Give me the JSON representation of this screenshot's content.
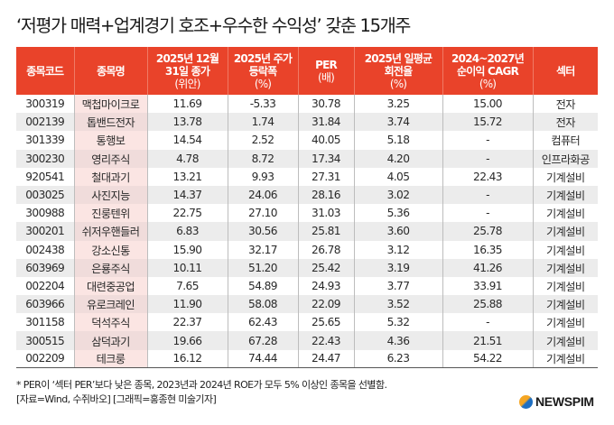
{
  "title": "‘저평가 매력+업계경기 호조+우수한 수익성’ 갖춘 15개주",
  "table": {
    "headers": [
      {
        "label": "종목코드",
        "unit": ""
      },
      {
        "label": "종목명",
        "unit": ""
      },
      {
        "label": "2025년 12월 31일 종가",
        "unit": "(위안)"
      },
      {
        "label": "2025년 주가 등락폭",
        "unit": "(%)"
      },
      {
        "label": "PER",
        "unit": "(배)"
      },
      {
        "label": "2025년 일평균 회전율",
        "unit": "(%)"
      },
      {
        "label": "2024~2027년 순이익 CAGR",
        "unit": "(%)"
      },
      {
        "label": "섹터",
        "unit": ""
      }
    ],
    "rows": [
      [
        "300319",
        "맥첩마이크로",
        "11.69",
        "-5.33",
        "30.78",
        "3.25",
        "15.00",
        "전자"
      ],
      [
        "002139",
        "톱밴드전자",
        "13.78",
        "1.74",
        "31.84",
        "3.74",
        "15.72",
        "전자"
      ],
      [
        "301339",
        "통행보",
        "14.54",
        "2.52",
        "40.05",
        "5.18",
        "-",
        "컴퓨터"
      ],
      [
        "300230",
        "영리주식",
        "4.78",
        "8.72",
        "17.34",
        "4.20",
        "-",
        "인프라화공"
      ],
      [
        "920541",
        "철대과기",
        "13.21",
        "9.93",
        "27.31",
        "4.05",
        "22.43",
        "기계설비"
      ],
      [
        "003025",
        "사진지능",
        "14.37",
        "24.06",
        "28.16",
        "3.02",
        "-",
        "기계설비"
      ],
      [
        "300988",
        "진룽텐위",
        "22.75",
        "27.10",
        "31.03",
        "5.36",
        "-",
        "기계설비"
      ],
      [
        "300201",
        "쉬저우핸들러",
        "6.83",
        "30.56",
        "25.81",
        "3.60",
        "25.78",
        "기계설비"
      ],
      [
        "002438",
        "강소신통",
        "15.90",
        "32.17",
        "26.78",
        "3.12",
        "16.35",
        "기계설비"
      ],
      [
        "603969",
        "은룡주식",
        "10.11",
        "51.20",
        "25.42",
        "3.19",
        "41.26",
        "기계설비"
      ],
      [
        "002204",
        "대련중공업",
        "7.65",
        "54.89",
        "24.93",
        "3.77",
        "33.91",
        "기계설비"
      ],
      [
        "603966",
        "유로크레인",
        "11.90",
        "58.08",
        "22.09",
        "3.52",
        "25.88",
        "기계설비"
      ],
      [
        "301158",
        "덕석주식",
        "22.37",
        "62.43",
        "25.65",
        "5.32",
        "-",
        "기계설비"
      ],
      [
        "300515",
        "삼덕과기",
        "19.66",
        "67.28",
        "22.43",
        "4.36",
        "21.51",
        "기계설비"
      ],
      [
        "002209",
        "테크룽",
        "16.12",
        "74.44",
        "24.47",
        "6.23",
        "54.22",
        "기계설비"
      ]
    ]
  },
  "footnote": {
    "line1": "* PER이 ‘섹터 PER’보다 낮은 종목, 2023년과 2024년 ROE가 모두 5% 이상인 종목을 선별함.",
    "line2": "[자료=Wind, 수쥐바오] [그래픽=홍종현 미술기자]"
  },
  "logo": {
    "text": "NEWSPIM",
    "icon": "globe-icon"
  },
  "colors": {
    "header_bg": "#e9432a",
    "header_text": "#ffffff",
    "name_col_bg": "#fbe5e3",
    "stripe_bg": "#ececec"
  },
  "chart_data": {
    "type": "table",
    "title": "‘저평가 매력+업계경기 호조+우수한 수익성’ 갖춘 15개주",
    "columns": [
      "종목코드",
      "종목명",
      "2025년 12월 31일 종가 (위안)",
      "2025년 주가 등락폭 (%)",
      "PER (배)",
      "2025년 일평균 회전율 (%)",
      "2024~2027년 순이익 CAGR (%)",
      "섹터"
    ],
    "rows": [
      [
        "300319",
        "맥첩마이크로",
        11.69,
        -5.33,
        30.78,
        3.25,
        15.0,
        "전자"
      ],
      [
        "002139",
        "톱밴드전자",
        13.78,
        1.74,
        31.84,
        3.74,
        15.72,
        "전자"
      ],
      [
        "301339",
        "통행보",
        14.54,
        2.52,
        40.05,
        5.18,
        null,
        "컴퓨터"
      ],
      [
        "300230",
        "영리주식",
        4.78,
        8.72,
        17.34,
        4.2,
        null,
        "인프라화공"
      ],
      [
        "920541",
        "철대과기",
        13.21,
        9.93,
        27.31,
        4.05,
        22.43,
        "기계설비"
      ],
      [
        "003025",
        "사진지능",
        14.37,
        24.06,
        28.16,
        3.02,
        null,
        "기계설비"
      ],
      [
        "300988",
        "진룽텐위",
        22.75,
        27.1,
        31.03,
        5.36,
        null,
        "기계설비"
      ],
      [
        "300201",
        "쉬저우핸들러",
        6.83,
        30.56,
        25.81,
        3.6,
        25.78,
        "기계설비"
      ],
      [
        "002438",
        "강소신통",
        15.9,
        32.17,
        26.78,
        3.12,
        16.35,
        "기계설비"
      ],
      [
        "603969",
        "은룡주식",
        10.11,
        51.2,
        25.42,
        3.19,
        41.26,
        "기계설비"
      ],
      [
        "002204",
        "대련중공업",
        7.65,
        54.89,
        24.93,
        3.77,
        33.91,
        "기계설비"
      ],
      [
        "603966",
        "유로크레인",
        11.9,
        58.08,
        22.09,
        3.52,
        25.88,
        "기계설비"
      ],
      [
        "301158",
        "덕석주식",
        22.37,
        62.43,
        25.65,
        5.32,
        null,
        "기계설비"
      ],
      [
        "300515",
        "삼덕과기",
        19.66,
        67.28,
        22.43,
        4.36,
        21.51,
        "기계설비"
      ],
      [
        "002209",
        "테크룽",
        16.12,
        74.44,
        24.47,
        6.23,
        54.22,
        "기계설비"
      ]
    ],
    "notes": "* PER이 ‘섹터 PER’보다 낮은 종목, 2023년과 2024년 ROE가 모두 5% 이상인 종목을 선별함.",
    "source": "[자료=Wind, 수쥐바오] [그래픽=홍종현 미술기자]"
  }
}
